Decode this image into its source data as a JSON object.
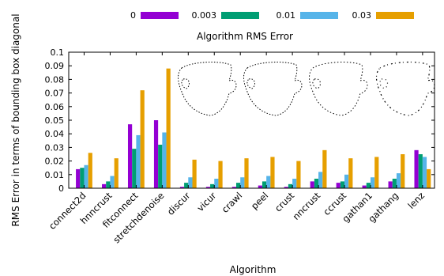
{
  "chart_data": {
    "type": "bar",
    "title": "Algorithm RMS Error",
    "xlabel": "Algorithm",
    "ylabel": "RMS Error in terms of bounding box diagonal",
    "ylim": [
      0,
      0.1
    ],
    "yticks": [
      "0",
      "0.01",
      "0.02",
      "0.03",
      "0.04",
      "0.05",
      "0.06",
      "0.07",
      "0.08",
      "0.09",
      "0.1"
    ],
    "legend_position": "top",
    "grid": false,
    "categories": [
      "connect2d",
      "hnncrust",
      "fitconnect",
      "stretchdenoise",
      "discur",
      "vicur",
      "crawl",
      "peel",
      "crust",
      "nncrust",
      "ccrust",
      "gathan1",
      "gathang",
      "lenz"
    ],
    "series": [
      {
        "name": "0",
        "color": "#9400d3",
        "values": [
          0.014,
          0.003,
          0.047,
          0.05,
          0.001,
          0.001,
          0.001,
          0.002,
          0.001,
          0.005,
          0.004,
          0.002,
          0.005,
          0.028
        ]
      },
      {
        "name": "0.003",
        "color": "#009e73",
        "values": [
          0.015,
          0.005,
          0.029,
          0.032,
          0.004,
          0.003,
          0.004,
          0.005,
          0.003,
          0.007,
          0.005,
          0.004,
          0.007,
          0.025
        ]
      },
      {
        "name": "0.01",
        "color": "#56b4e9",
        "values": [
          0.017,
          0.009,
          0.039,
          0.041,
          0.008,
          0.007,
          0.008,
          0.009,
          0.007,
          0.012,
          0.01,
          0.008,
          0.011,
          0.023
        ]
      },
      {
        "name": "0.03",
        "color": "#e69f00",
        "values": [
          0.026,
          0.022,
          0.072,
          0.088,
          0.021,
          0.02,
          0.022,
          0.023,
          0.02,
          0.028,
          0.022,
          0.023,
          0.025,
          0.014
        ]
      }
    ]
  }
}
